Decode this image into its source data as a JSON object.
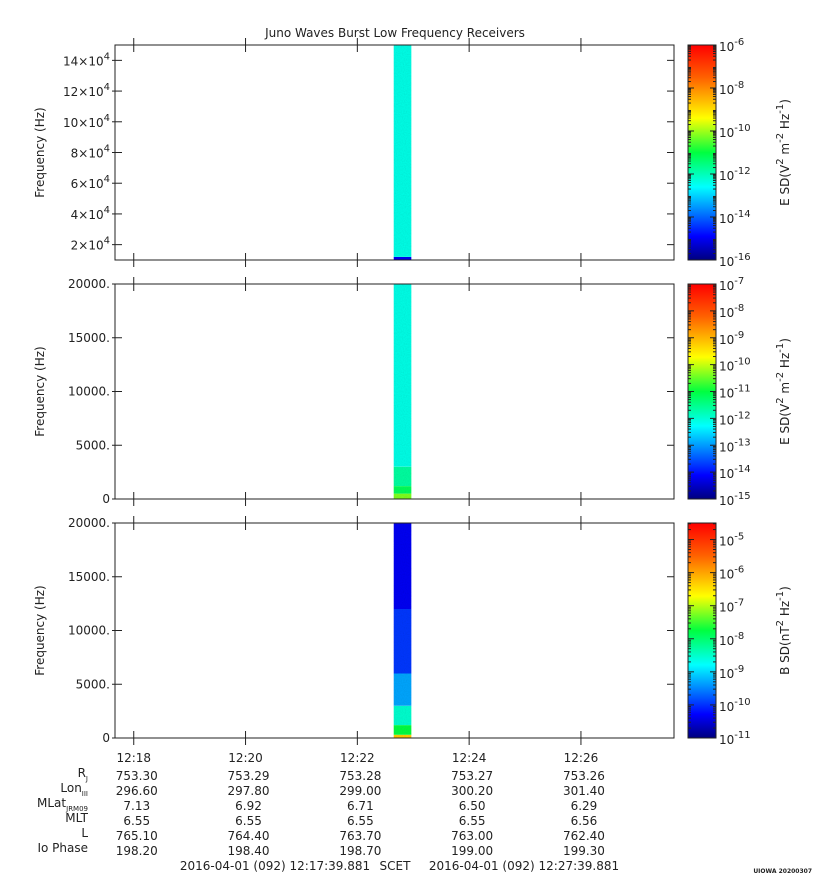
{
  "title": "Juno Waves Burst Low Frequency Receivers",
  "time_axis": {
    "range": [
      "12:17:39.881",
      "12:27:39.881"
    ],
    "ticks": [
      "12:18",
      "12:20",
      "12:22",
      "12:24",
      "12:26"
    ],
    "start_label": "2016-04-01 (092) 12:17:39.881",
    "scet_label": "SCET",
    "end_label": "2016-04-01 (092) 12:27:39.881"
  },
  "burst": {
    "start": "12:22:39",
    "end": "12:22:58"
  },
  "chart_data": [
    {
      "type": "heatmap",
      "ylabel": "Frequency (Hz)",
      "ylim": [
        10000,
        150000
      ],
      "yticks": [
        {
          "value": 20000,
          "mant": "2",
          "exp": "4"
        },
        {
          "value": 40000,
          "mant": "4",
          "exp": "4"
        },
        {
          "value": 60000,
          "mant": "6",
          "exp": "4"
        },
        {
          "value": 80000,
          "mant": "8",
          "exp": "4"
        },
        {
          "value": 100000,
          "mant": "10",
          "exp": "4"
        },
        {
          "value": 120000,
          "mant": "12",
          "exp": "4"
        },
        {
          "value": 140000,
          "mant": "14",
          "exp": "4"
        }
      ],
      "colorbar": {
        "label_main": "E SD(V",
        "label_sup1": "2",
        "label_mid": " m",
        "label_sup2": "-2",
        "label_mid2": " Hz",
        "label_sup3": "-1",
        "label_end": ")",
        "log_range": [
          -16,
          -6
        ],
        "ticks": [
          {
            "exp": "-6",
            "v": -6
          },
          {
            "exp": "-8",
            "v": -8
          },
          {
            "exp": "-10",
            "v": -10
          },
          {
            "exp": "-12",
            "v": -12
          },
          {
            "exp": "-14",
            "v": -14
          },
          {
            "exp": "-16",
            "v": -16
          }
        ]
      },
      "burst_profile": [
        {
          "fmin": 10000,
          "fmax": 12000,
          "level": 0.1
        },
        {
          "fmin": 12000,
          "fmax": 150000,
          "level": 0.36
        }
      ]
    },
    {
      "type": "heatmap",
      "ylabel": "Frequency (Hz)",
      "ylim": [
        0,
        20000
      ],
      "yticks": [
        {
          "value": 0,
          "label": "0"
        },
        {
          "value": 5000,
          "label": "5000."
        },
        {
          "value": 10000,
          "label": "10000."
        },
        {
          "value": 15000,
          "label": "15000."
        },
        {
          "value": 20000,
          "label": "20000."
        }
      ],
      "colorbar": {
        "label_main": "E SD(V",
        "label_sup1": "2",
        "label_mid": " m",
        "label_sup2": "-2",
        "label_mid2": " Hz",
        "label_sup3": "-1",
        "label_end": ")",
        "log_range": [
          -15,
          -7
        ],
        "ticks": [
          {
            "exp": "-7",
            "v": -7
          },
          {
            "exp": "-8",
            "v": -8
          },
          {
            "exp": "-9",
            "v": -9
          },
          {
            "exp": "-10",
            "v": -10
          },
          {
            "exp": "-11",
            "v": -11
          },
          {
            "exp": "-12",
            "v": -12
          },
          {
            "exp": "-13",
            "v": -13
          },
          {
            "exp": "-14",
            "v": -14
          },
          {
            "exp": "-15",
            "v": -15
          }
        ]
      },
      "burst_profile": [
        {
          "fmin": 0,
          "fmax": 500,
          "level": 0.58
        },
        {
          "fmin": 500,
          "fmax": 1200,
          "level": 0.48
        },
        {
          "fmin": 1200,
          "fmax": 3000,
          "level": 0.42
        },
        {
          "fmin": 3000,
          "fmax": 20000,
          "level": 0.36
        }
      ]
    },
    {
      "type": "heatmap",
      "ylabel": "Frequency (Hz)",
      "ylim": [
        0,
        20000
      ],
      "yticks": [
        {
          "value": 0,
          "label": "0"
        },
        {
          "value": 5000,
          "label": "5000."
        },
        {
          "value": 10000,
          "label": "10000."
        },
        {
          "value": 15000,
          "label": "15000."
        },
        {
          "value": 20000,
          "label": "20000."
        }
      ],
      "colorbar": {
        "label_main": "B SD(nT",
        "label_sup1": "2",
        "label_mid": " Hz",
        "label_sup2": "-1",
        "label_mid2": "",
        "label_sup3": "",
        "label_end": ")",
        "log_range": [
          -11,
          -4.5
        ],
        "ticks": [
          {
            "exp": "-5",
            "v": -5
          },
          {
            "exp": "-6",
            "v": -6
          },
          {
            "exp": "-7",
            "v": -7
          },
          {
            "exp": "-8",
            "v": -8
          },
          {
            "exp": "-9",
            "v": -9
          },
          {
            "exp": "-10",
            "v": -10
          },
          {
            "exp": "-11",
            "v": -11
          }
        ]
      },
      "burst_profile": [
        {
          "fmin": 0,
          "fmax": 300,
          "level": 0.72
        },
        {
          "fmin": 300,
          "fmax": 1200,
          "level": 0.5
        },
        {
          "fmin": 1200,
          "fmax": 3000,
          "level": 0.38
        },
        {
          "fmin": 3000,
          "fmax": 6000,
          "level": 0.26
        },
        {
          "fmin": 6000,
          "fmax": 12000,
          "level": 0.16
        },
        {
          "fmin": 12000,
          "fmax": 20000,
          "level": 0.1
        }
      ]
    }
  ],
  "ephemeris": {
    "rows": [
      {
        "label": "R",
        "sub": "J",
        "values": [
          "753.30",
          "753.29",
          "753.28",
          "753.27",
          "753.26"
        ]
      },
      {
        "label": "Lon",
        "sub": "III",
        "values": [
          "296.60",
          "297.80",
          "299.00",
          "300.20",
          "301.40"
        ]
      },
      {
        "label": "MLat",
        "sub": "JRM09",
        "values": [
          "7.13",
          "6.92",
          "6.71",
          "6.50",
          "6.29"
        ]
      },
      {
        "label": "MLT",
        "sub": "",
        "values": [
          "6.55",
          "6.55",
          "6.55",
          "6.55",
          "6.56"
        ]
      },
      {
        "label": "L",
        "sub": "",
        "values": [
          "765.10",
          "764.40",
          "763.70",
          "763.00",
          "762.40"
        ]
      },
      {
        "label": "Io Phase",
        "sub": "",
        "values": [
          "198.20",
          "198.40",
          "198.70",
          "199.00",
          "199.30"
        ]
      }
    ]
  },
  "watermark": "UIOWA 20200307"
}
